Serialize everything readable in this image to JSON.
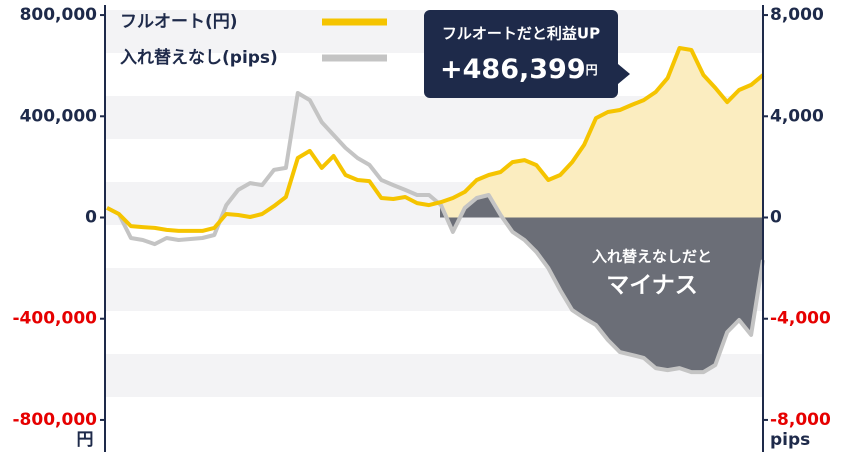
{
  "chart_data": {
    "type": "line",
    "categories": [
      null,
      null,
      null,
      null,
      null,
      null,
      null,
      null,
      null,
      null,
      null,
      null,
      null,
      null,
      null,
      null,
      null,
      null,
      null,
      null,
      null,
      null,
      null,
      null,
      null,
      null,
      null,
      null,
      null,
      null,
      null,
      null,
      null,
      null,
      null,
      null,
      null,
      null,
      null,
      null,
      null,
      null,
      null,
      null,
      null,
      null,
      null,
      null,
      null,
      null,
      null,
      null,
      null,
      null,
      null,
      null
    ],
    "series": [
      {
        "name": "フルオート(円)",
        "color": "#f5c400",
        "fill": "#fbedc0",
        "values": [
          38000,
          14000,
          -34000,
          -38000,
          -41000,
          -49000,
          -53000,
          -53000,
          -53000,
          -41000,
          14000,
          10000,
          2000,
          14000,
          45000,
          81000,
          235000,
          263000,
          196000,
          243000,
          168000,
          148000,
          144000,
          77000,
          73000,
          81000,
          57000,
          49000,
          61000,
          77000,
          101000,
          148000,
          168000,
          180000,
          219000,
          227000,
          207000,
          148000,
          168000,
          219000,
          287000,
          393000,
          417000,
          425000,
          445000,
          464000,
          496000,
          551000,
          670000,
          662000,
          563000,
          512000,
          456000,
          504000,
          524000,
          563000
        ]
      },
      {
        "name": "入れ替えなし(pips)",
        "color": "#c4c4c4",
        "fill": "#6b6e77",
        "axis": "y2",
        "values": [
          380,
          140,
          -810,
          -890,
          -1050,
          -810,
          -890,
          -850,
          -810,
          -690,
          490,
          1090,
          1360,
          1280,
          1880,
          1960,
          4920,
          4640,
          3770,
          3260,
          2750,
          2350,
          2080,
          1480,
          1280,
          1090,
          890,
          890,
          490,
          -570,
          380,
          770,
          890,
          100,
          -570,
          -890,
          -1360,
          -2000,
          -2870,
          -3660,
          -3970,
          -4250,
          -4840,
          -5320,
          -5430,
          -5550,
          -5950,
          -6030,
          -5950,
          -6110,
          -6110,
          -5830,
          -4530,
          -4050,
          -4640,
          -1680
        ]
      }
    ],
    "ylim": [
      -820000,
      820000
    ],
    "yticks": [
      {
        "value": -800000,
        "label": "-800,000"
      },
      {
        "value": -400000,
        "label": "-400,000"
      },
      0,
      {
        "value": 400000,
        "label": "400,000"
      },
      {
        "value": 800000,
        "label": "800,000"
      }
    ],
    "y2lim": [
      -8200,
      8200
    ],
    "y2ticks": [
      {
        "value": -8000,
        "label": "-8,000"
      },
      {
        "value": -4000,
        "label": "-4,000"
      },
      0,
      {
        "value": 4000,
        "label": "4,000"
      },
      {
        "value": 8000,
        "label": "8,000"
      }
    ],
    "y_unit": "円",
    "y2_unit": "pips",
    "negative_tick_color": "#e60000",
    "tick_color": "#1e2a4a",
    "annotations": [
      {
        "text": "フルオートだと利益UP",
        "value": "+486,399",
        "unit": "円"
      },
      {
        "text": "入れ替えなしだと",
        "emphasis": "マイナス"
      }
    ]
  }
}
